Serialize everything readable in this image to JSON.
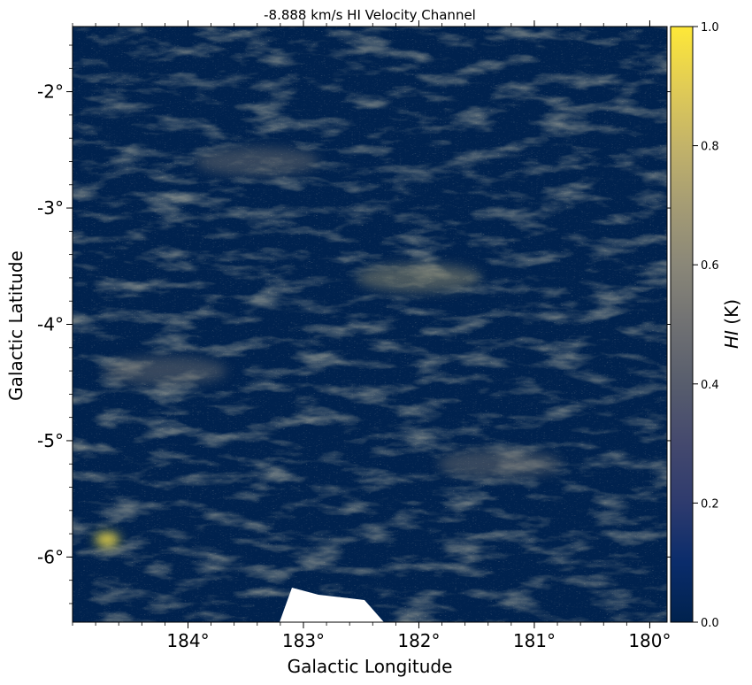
{
  "chart_data": {
    "type": "heatmap",
    "title": "-8.888 km/s HI Velocity Channel",
    "xlabel": "Galactic Longitude",
    "ylabel": "Galactic Latitude",
    "x_reversed": true,
    "xlim": [
      185.0,
      179.85
    ],
    "ylim": [
      -6.56,
      -1.44
    ],
    "x_ticks": [
      {
        "value": 184,
        "label": "184°"
      },
      {
        "value": 183,
        "label": "183°"
      },
      {
        "value": 182,
        "label": "182°"
      },
      {
        "value": 181,
        "label": "181°"
      },
      {
        "value": 180,
        "label": "180°"
      }
    ],
    "y_ticks": [
      {
        "value": -2,
        "label": "-2°"
      },
      {
        "value": -3,
        "label": "-3°"
      },
      {
        "value": -4,
        "label": "-4°"
      },
      {
        "value": -5,
        "label": "-5°"
      },
      {
        "value": -6,
        "label": "-6°"
      }
    ],
    "colorbar": {
      "label_italic": "HI",
      "label_unit": " (K)",
      "colormap": "cividis",
      "vmin": 0.0,
      "vmax": 1.0,
      "ticks": [
        {
          "value": 0.0,
          "label": "0.0"
        },
        {
          "value": 0.2,
          "label": "0.2"
        },
        {
          "value": 0.4,
          "label": "0.4"
        },
        {
          "value": 0.6,
          "label": "0.6"
        },
        {
          "value": 0.8,
          "label": "0.8"
        },
        {
          "value": 1.0,
          "label": "1.0"
        }
      ]
    },
    "features": [
      {
        "name": "filament-a",
        "l": 182.0,
        "b": -3.6,
        "peak": 0.45
      },
      {
        "name": "filament-b",
        "l": 184.2,
        "b": -4.4,
        "peak": 0.4
      },
      {
        "name": "filament-c",
        "l": 183.4,
        "b": -2.6,
        "peak": 0.35
      },
      {
        "name": "bright-spot",
        "l": 184.7,
        "b": -5.85,
        "peak": 0.95
      },
      {
        "name": "ridge-d",
        "l": 181.3,
        "b": -5.2,
        "peak": 0.35
      }
    ],
    "grid": false
  }
}
